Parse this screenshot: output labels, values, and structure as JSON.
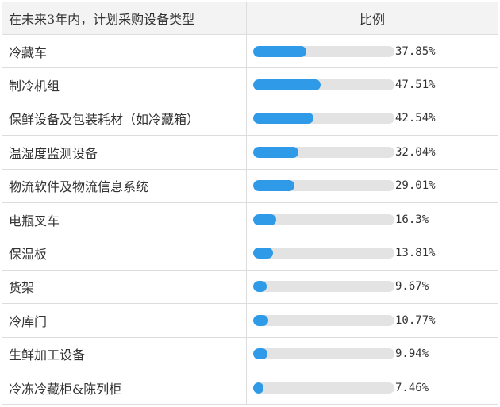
{
  "table": {
    "header_option": "在未来3年内，计划采购设备类型",
    "header_ratio": "比例"
  },
  "colors": {
    "bar_fill": "#2f9ae8",
    "bar_track": "#e3e3e3",
    "header_bg": "#f3f3f3",
    "border": "#dddddd"
  },
  "chart_data": {
    "type": "table",
    "value_unit": "%",
    "max_value": 100,
    "columns": [
      "在未来3年内，计划采购设备类型",
      "比例"
    ],
    "rows": [
      {
        "label": "冷藏车",
        "value": 37.85,
        "display": "37.85%"
      },
      {
        "label": "制冷机组",
        "value": 47.51,
        "display": "47.51%"
      },
      {
        "label": "保鲜设备及包装耗材（如冷藏箱）",
        "value": 42.54,
        "display": "42.54%"
      },
      {
        "label": "温湿度监测设备",
        "value": 32.04,
        "display": "32.04%"
      },
      {
        "label": "物流软件及物流信息系统",
        "value": 29.01,
        "display": "29.01%"
      },
      {
        "label": "电瓶叉车",
        "value": 16.3,
        "display": "16.3%"
      },
      {
        "label": "保温板",
        "value": 13.81,
        "display": "13.81%"
      },
      {
        "label": "货架",
        "value": 9.67,
        "display": "9.67%"
      },
      {
        "label": "冷库门",
        "value": 10.77,
        "display": "10.77%"
      },
      {
        "label": "生鲜加工设备",
        "value": 9.94,
        "display": "9.94%"
      },
      {
        "label": "冷冻冷藏柜&陈列柜",
        "value": 7.46,
        "display": "7.46%"
      }
    ]
  }
}
